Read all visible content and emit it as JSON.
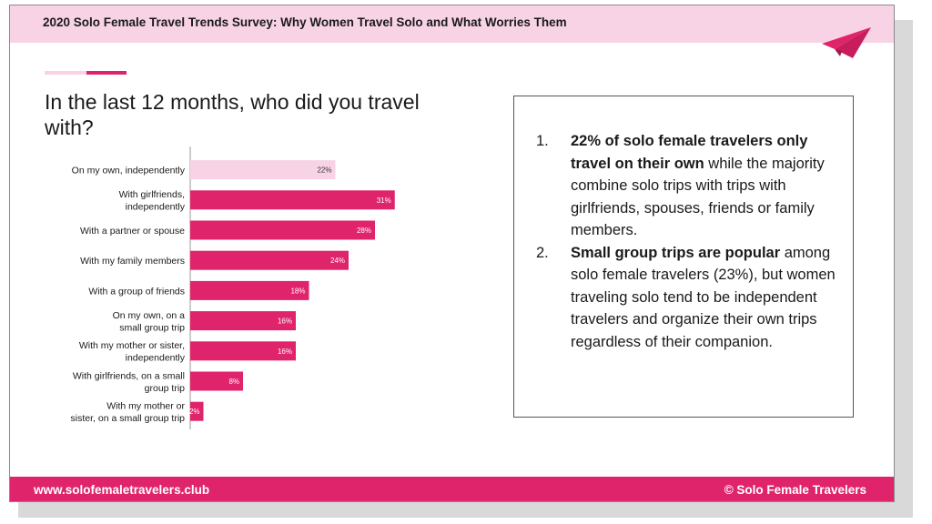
{
  "header": {
    "title": "2020 Solo Female Travel Trends Survey: Why Women Travel Solo and What Worries Them"
  },
  "question": "In the last 12 months, who did you travel with?",
  "chart_data": {
    "type": "bar",
    "orientation": "horizontal",
    "title": "",
    "categories": [
      [
        "On my own, independently"
      ],
      [
        "With girlfriends,",
        "independently"
      ],
      [
        "With a partner or spouse"
      ],
      [
        "With my family members"
      ],
      [
        "With a group of friends"
      ],
      [
        "On my own, on a",
        "small group trip"
      ],
      [
        "With my mother or sister,",
        "independently"
      ],
      [
        "With girlfriends, on a small",
        "group trip"
      ],
      [
        "With my mother or",
        "sister, on a small group trip"
      ]
    ],
    "values": [
      22,
      31,
      28,
      24,
      18,
      16,
      16,
      8,
      2
    ],
    "value_labels": [
      "22%",
      "31%",
      "28%",
      "24%",
      "18%",
      "16%",
      "16%",
      "8%",
      "2%"
    ],
    "unit": "%",
    "highlight_index": 0,
    "colors": {
      "bar": "#e0246b",
      "highlight": "#f8d3e6",
      "label_on_bar": "#ffffff",
      "label_on_highlight": "#333333"
    }
  },
  "insights": [
    {
      "number": "1.",
      "bold": "22% of solo female travelers only travel on their own",
      "text": " while the majority combine solo trips with trips with girlfriends, spouses, friends or family members."
    },
    {
      "number": "2.",
      "bold": "Small group trips are popular",
      "text": " among solo female travelers (23%), but women traveling solo tend to be independent travelers and organize their own trips regardless of their companion."
    }
  ],
  "footer": {
    "website": "www.solofemaletravelers.club",
    "copyright": "© Solo Female Travelers"
  },
  "icons": {
    "logo": "paper-plane-icon"
  },
  "colors": {
    "accent": "#e0246b",
    "header_bg": "#f8d3e6"
  }
}
